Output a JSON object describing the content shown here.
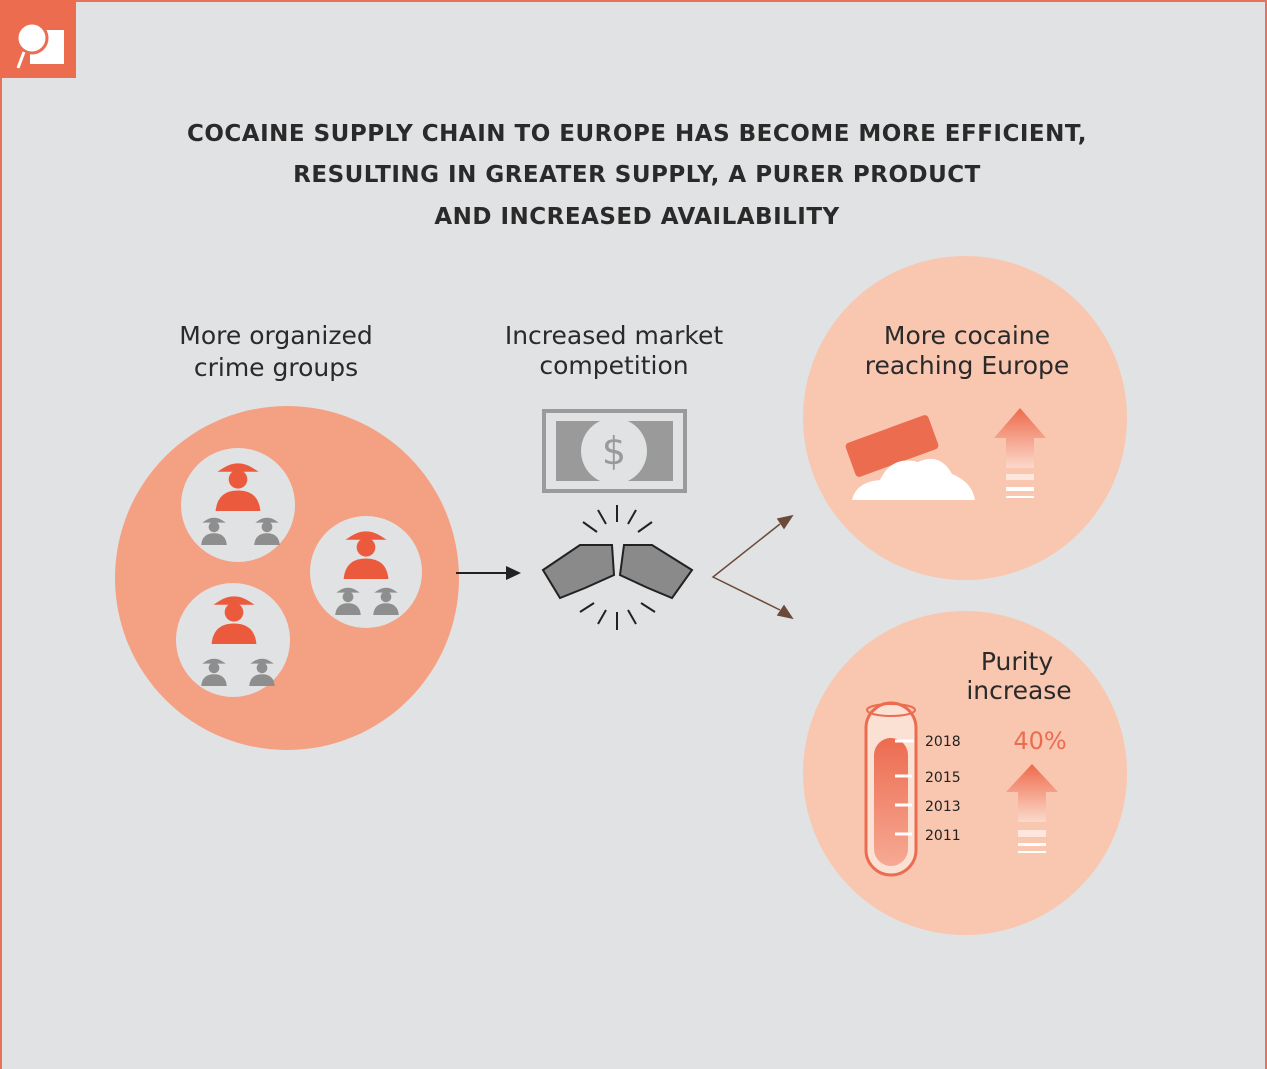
{
  "title_lines": [
    "COCAINE SUPPLY CHAIN TO EUROPE HAS BECOME MORE EFFICIENT,",
    "RESULTING IN GREATER SUPPLY,  A PURER PRODUCT",
    "AND INCREASED AVAILABILITY"
  ],
  "groups_label": [
    "More organized",
    "crime groups"
  ],
  "competition_label": [
    "Increased market",
    "competition"
  ],
  "money_symbol": "$",
  "supply_label": [
    "More cocaine",
    "reaching Europe"
  ],
  "purity_label": [
    "Purity",
    "increase"
  ],
  "purity_years": [
    "2018",
    "2015",
    "2013",
    "2011"
  ],
  "purity_change": "40%"
}
